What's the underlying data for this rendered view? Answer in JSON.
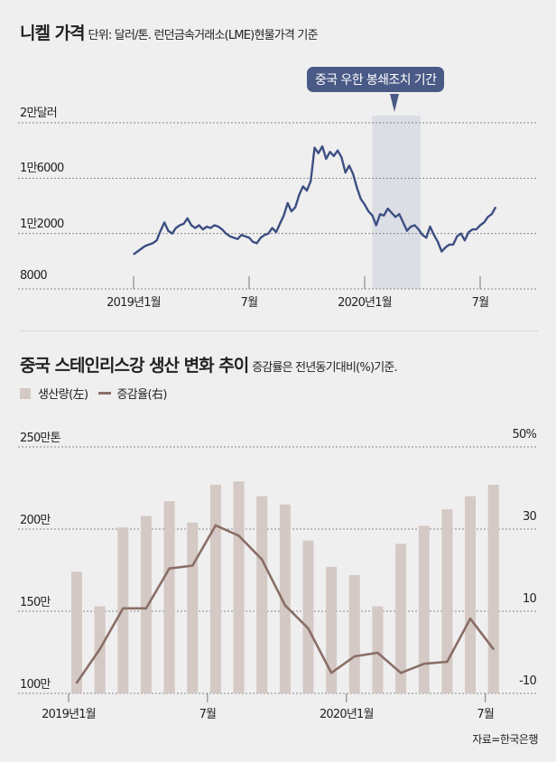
{
  "header": {
    "title": "니켈 가격",
    "subtitle": "단위: 달러/톤. 런던금속거래소(LME)현물가격 기준"
  },
  "callout": {
    "label": "중국 우한 봉쇄조치 기간"
  },
  "section2": {
    "title": "중국 스테인리스강 생산 변화 추이",
    "subtitle": "증감률은 전년동기대비(%)기준."
  },
  "source": "자료=한국은행",
  "colors": {
    "nickel_line": "#3d4f82",
    "shade": "#dcdee6",
    "bar": "#d4c9c4",
    "growth_line": "#8a6e66",
    "callout": "#4a5a86"
  },
  "chart_data": [
    {
      "type": "line",
      "title": "니켈 가격",
      "subtitle": "단위: 달러/톤. 런던금속거래소(LME)현물가격 기준",
      "ylim": [
        8000,
        20000
      ],
      "yticks": [
        8000,
        12000,
        16000,
        20000
      ],
      "ytick_labels": [
        "8000",
        "1만2000",
        "1만6000",
        "2만달러"
      ],
      "xtick_labels": [
        "2019년1월",
        "7월",
        "2020년1월",
        "7월"
      ],
      "xlim_months": [
        -1.3,
        19.0
      ],
      "xticks_months": [
        0,
        6,
        12,
        18
      ],
      "shaded_period": {
        "label": "중국 우한 봉쇄조치 기간",
        "from_month": 12.4,
        "to_month": 14.9
      },
      "grid": true,
      "series": [
        {
          "name": "니켈 가격",
          "x": [
            0,
            0.2,
            0.4,
            0.6,
            0.8,
            1.0,
            1.2,
            1.4,
            1.6,
            1.8,
            2.0,
            2.2,
            2.4,
            2.6,
            2.8,
            3.0,
            3.2,
            3.4,
            3.6,
            3.8,
            4.0,
            4.2,
            4.4,
            4.6,
            4.8,
            5.0,
            5.2,
            5.4,
            5.6,
            5.8,
            6.0,
            6.2,
            6.4,
            6.6,
            6.8,
            7.0,
            7.2,
            7.4,
            7.6,
            7.8,
            8.0,
            8.2,
            8.4,
            8.6,
            8.8,
            9.0,
            9.2,
            9.4,
            9.6,
            9.8,
            10.0,
            10.2,
            10.4,
            10.6,
            10.8,
            11.0,
            11.2,
            11.4,
            11.6,
            11.8,
            12.0,
            12.2,
            12.4,
            12.6,
            12.8,
            13.0,
            13.2,
            13.4,
            13.6,
            13.8,
            14.0,
            14.2,
            14.4,
            14.6,
            14.8,
            15.0,
            15.2,
            15.4,
            15.6,
            15.8,
            16.0,
            16.2,
            16.4,
            16.6,
            16.8,
            17.0,
            17.2,
            17.4,
            17.6,
            17.8,
            18.0,
            18.2,
            18.4,
            18.6,
            18.8
          ],
          "values": [
            10500,
            10700,
            10900,
            11100,
            11200,
            11300,
            11500,
            12200,
            12800,
            12200,
            12000,
            12400,
            12600,
            12700,
            13100,
            12600,
            12400,
            12600,
            12300,
            12500,
            12400,
            12600,
            12500,
            12300,
            12000,
            11800,
            11700,
            11600,
            11900,
            11800,
            11700,
            11400,
            11300,
            11700,
            11900,
            12000,
            12400,
            12100,
            12700,
            13300,
            14200,
            13600,
            13900,
            14800,
            15400,
            15100,
            15800,
            18200,
            17800,
            18300,
            17400,
            17900,
            17600,
            18000,
            17500,
            16400,
            16900,
            16300,
            15300,
            14500,
            14100,
            13600,
            13300,
            12600,
            13400,
            13300,
            13800,
            13500,
            13200,
            13400,
            12800,
            12200,
            12500,
            12600,
            12300,
            11900,
            11700,
            12500,
            11900,
            11400,
            10700,
            11000,
            11200,
            11200,
            11800,
            12000,
            11500,
            12100,
            12300,
            12300,
            12600,
            12800,
            13200,
            13400,
            13900
          ]
        }
      ]
    },
    {
      "type": "bar",
      "title": "중국 스테인리스강 생산 변화 추이",
      "subtitle": "증감률은 전년동기대비(%)기준.",
      "legend": [
        "생산량(左)",
        "증감율(右)"
      ],
      "legend_position": "top-left",
      "ylim_left": [
        100,
        250
      ],
      "yticks_left": [
        100,
        150,
        200,
        250
      ],
      "ytick_labels_left": [
        "100만",
        "150만",
        "200만",
        "250만톤"
      ],
      "ylim_right": [
        -10,
        50
      ],
      "yticks_right": [
        -10,
        10,
        30,
        50
      ],
      "ytick_labels_right": [
        "-10",
        "10",
        "30",
        "50%"
      ],
      "xtick_labels": [
        "2019년1월",
        "7월",
        "2020년1월",
        "7월"
      ],
      "xticks_index": [
        0,
        6,
        12,
        18
      ],
      "categories": [
        "2019-01",
        "2019-02",
        "2019-03",
        "2019-04",
        "2019-05",
        "2019-06",
        "2019-07",
        "2019-08",
        "2019-09",
        "2019-10",
        "2019-11",
        "2019-12",
        "2020-01",
        "2020-02",
        "2020-03",
        "2020-04",
        "2020-05",
        "2020-06",
        "2020-07"
      ],
      "series": [
        {
          "name": "생산량(左)",
          "unit": "만톤",
          "values": [
            174,
            153,
            201,
            208,
            217,
            204,
            227,
            229,
            220,
            215,
            193,
            177,
            172,
            153,
            191,
            202,
            212,
            220,
            227
          ]
        },
        {
          "name": "증감율(右)",
          "unit": "%",
          "values": [
            -7.4,
            0.8,
            10.7,
            10.7,
            20.4,
            21.1,
            30.9,
            28.4,
            22.6,
            11.4,
            5.8,
            -5.0,
            -1.0,
            -0.1,
            -5.0,
            -2.8,
            -2.3,
            8.2,
            0.8
          ]
        }
      ],
      "grid": true
    }
  ]
}
